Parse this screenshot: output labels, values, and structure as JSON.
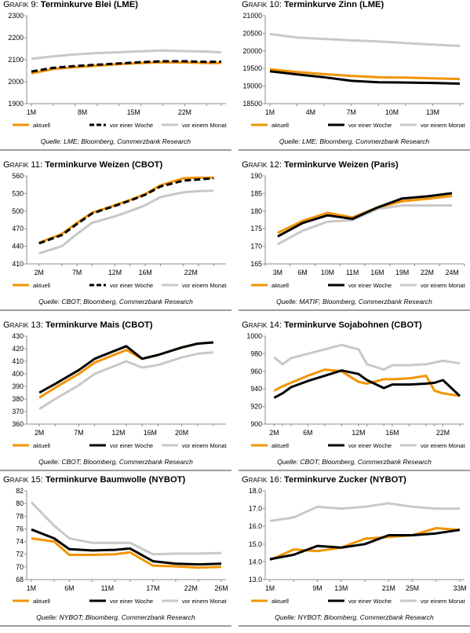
{
  "colors": {
    "aktuell": "#f29400",
    "woche": "#000000",
    "monat": "#c8c8c8",
    "axis": "#8c8c8c"
  },
  "panels": [
    {
      "prefix": "Grafik 9:",
      "title": "Terminkurve Blei (LME)",
      "source": "Quelle: LME; Bloomberg, Commerzbank Research",
      "chart_data": {
        "type": "line",
        "ylim": [
          1900,
          2300
        ],
        "yticks": [
          1900,
          2000,
          2100,
          2200,
          2300
        ],
        "x": [
          1,
          4,
          7,
          10,
          13,
          16,
          19,
          22,
          25,
          27
        ],
        "xticks": [
          1,
          8,
          15,
          22
        ],
        "xticklabels": [
          "1M",
          "8M",
          "15M",
          "22M"
        ],
        "xlim": [
          1,
          27
        ],
        "legend_position": "bottom",
        "series": [
          {
            "name": "aktuell",
            "style": "solid",
            "color_key": "aktuell",
            "values": [
              2038,
              2058,
              2066,
              2073,
              2080,
              2085,
              2088,
              2087,
              2085,
              2085
            ]
          },
          {
            "name": "vor einer Woche",
            "style": "dashed",
            "color_key": "woche",
            "values": [
              2046,
              2063,
              2071,
              2077,
              2083,
              2089,
              2093,
              2093,
              2090,
              2091
            ]
          },
          {
            "name": "vor einem Monat",
            "style": "solid",
            "color_key": "monat",
            "values": [
              2104,
              2115,
              2124,
              2130,
              2134,
              2138,
              2142,
              2139,
              2137,
              2133
            ]
          }
        ]
      }
    },
    {
      "prefix": "Grafik 10:",
      "title": "Terminkurve Zinn (LME)",
      "source": "Quelle: LME; Bloomberg, Commerzbank Research",
      "chart_data": {
        "type": "line",
        "ylim": [
          18500,
          21000
        ],
        "yticks": [
          18500,
          19000,
          19500,
          20000,
          20500,
          21000
        ],
        "x": [
          1,
          3,
          5,
          7,
          9,
          11,
          13,
          15
        ],
        "xticks": [
          1,
          4,
          7,
          10,
          13
        ],
        "xticklabels": [
          "1M",
          "4M",
          "7M",
          "10M",
          "13M"
        ],
        "xlim": [
          1,
          15
        ],
        "legend_position": "bottom",
        "series": [
          {
            "name": "aktuell",
            "style": "solid",
            "color_key": "aktuell",
            "values": [
              19480,
              19400,
              19340,
              19290,
              19250,
              19240,
              19220,
              19200
            ]
          },
          {
            "name": "vor einer Woche",
            "style": "solid",
            "color_key": "woche",
            "values": [
              19420,
              19330,
              19250,
              19150,
              19110,
              19100,
              19090,
              19070
            ]
          },
          {
            "name": "vor einem Monat",
            "style": "solid",
            "color_key": "monat",
            "values": [
              20480,
              20380,
              20340,
              20300,
              20270,
              20220,
              20180,
              20140
            ]
          }
        ]
      }
    },
    {
      "prefix": "Grafik 11:",
      "title": "Terminkurve Weizen (CBOT)",
      "source": "Quelle: CBOT; Bloomberg, Commerzbank Research",
      "chart_data": {
        "type": "line",
        "ylim": [
          410,
          560
        ],
        "yticks": [
          410,
          440,
          470,
          500,
          530,
          560
        ],
        "x": [
          2,
          5,
          7,
          9,
          12,
          14,
          16,
          18,
          21,
          23,
          25
        ],
        "xticks": [
          2,
          7,
          12,
          16,
          22
        ],
        "xticklabels": [
          "2M",
          "7M",
          "12M",
          "16M",
          "22M"
        ],
        "xlim": [
          1,
          26
        ],
        "legend_position": "bottom",
        "series": [
          {
            "name": "aktuell",
            "style": "solid",
            "color_key": "aktuell",
            "values": [
              446,
              461,
              480,
              497,
              510,
              519,
              529,
              544,
              556,
              557,
              557
            ]
          },
          {
            "name": "vor einer Woche",
            "style": "dashed",
            "color_key": "woche",
            "values": [
              445,
              459,
              478,
              496,
              509,
              518,
              528,
              542,
              552,
              554,
              556
            ]
          },
          {
            "name": "vor einem Monat",
            "style": "solid",
            "color_key": "monat",
            "values": [
              428,
              440,
              461,
              480,
              491,
              500,
              510,
              524,
              532,
              534,
              535
            ]
          }
        ]
      }
    },
    {
      "prefix": "Grafik 12:",
      "title": "Terminkurve Weizen (Paris)",
      "source": "Quelle: MATIF; Bloomberg, Commerzbank Research",
      "chart_data": {
        "type": "line",
        "ylim": [
          165,
          190
        ],
        "yticks": [
          165,
          170,
          175,
          180,
          185,
          190
        ],
        "x": [
          3,
          6,
          10,
          11,
          16,
          19,
          22,
          24
        ],
        "xticks": [
          3,
          6,
          10,
          11,
          16,
          19,
          22,
          24
        ],
        "xticklabels": [
          "3M",
          "6M",
          "10M",
          "11M",
          "16M",
          "19M",
          "22M",
          "24M"
        ],
        "categorical_x": true,
        "legend_position": "bottom",
        "series": [
          {
            "name": "aktuell",
            "style": "solid",
            "color_key": "aktuell",
            "values": [
              173.8,
              177.2,
              179.5,
              178.2,
              181.0,
              182.8,
              183.5,
              184.3
            ]
          },
          {
            "name": "vor einer Woche",
            "style": "solid",
            "color_key": "woche",
            "values": [
              172.8,
              176.6,
              178.8,
              177.8,
              181.0,
              183.6,
              184.2,
              185.1
            ]
          },
          {
            "name": "vor einem Monat",
            "style": "solid",
            "color_key": "monat",
            "values": [
              170.6,
              174.4,
              177.0,
              177.4,
              180.6,
              181.6,
              181.6,
              181.6
            ]
          }
        ]
      }
    },
    {
      "prefix": "Grafik 13:",
      "title": "Terminkurve Mais (CBOT)",
      "source": "Quelle: CBOT; Bloomberg, Commerzbank Research",
      "chart_data": {
        "type": "line",
        "ylim": [
          360,
          430
        ],
        "yticks": [
          360,
          370,
          380,
          390,
          400,
          410,
          420,
          430
        ],
        "x": [
          2,
          4,
          7,
          9,
          13,
          15,
          17,
          20,
          22,
          24
        ],
        "xticks": [
          2,
          7,
          12,
          16,
          20
        ],
        "xticklabels": [
          "2M",
          "7M",
          "12M",
          "16M",
          "20M"
        ],
        "xlim": [
          1,
          25
        ],
        "legend_position": "bottom",
        "series": [
          {
            "name": "aktuell",
            "style": "solid",
            "color_key": "aktuell",
            "values": [
              381,
              389,
              400,
              409,
              419,
              412,
              415,
              421,
              424,
              425
            ]
          },
          {
            "name": "vor einer Woche",
            "style": "solid",
            "color_key": "woche",
            "values": [
              385,
              392,
              403,
              412,
              422,
              412,
              415,
              421,
              424,
              425
            ]
          },
          {
            "name": "vor einem Monat",
            "style": "solid",
            "color_key": "monat",
            "values": [
              372,
              380,
              391,
              400,
              410,
              405,
              407,
              413,
              416,
              417
            ]
          }
        ]
      }
    },
    {
      "prefix": "Grafik 14:",
      "title": "Terminkurve Sojabohnen (CBOT)",
      "source": "Quelle: CBOT; Bloomberg, Commerzbank Research",
      "chart_data": {
        "type": "line",
        "ylim": [
          900,
          1000
        ],
        "yticks": [
          900,
          920,
          940,
          960,
          980,
          1000
        ],
        "x": [
          2,
          3,
          4,
          6,
          8,
          10,
          12,
          13,
          15,
          16,
          18,
          20,
          21,
          22,
          24
        ],
        "xticks": [
          2,
          6,
          12,
          16,
          22
        ],
        "xticklabels": [
          "2M",
          "6M",
          "12M",
          "16M",
          "22M"
        ],
        "xlim": [
          1.5,
          24
        ],
        "legend_position": "bottom",
        "series": [
          {
            "name": "aktuell",
            "style": "solid",
            "color_key": "aktuell",
            "values": [
              938,
              943,
              947,
              955,
              962,
              960,
              948,
              946,
              951,
              951,
              952,
              955,
              938,
              935,
              932
            ]
          },
          {
            "name": "vor einer Woche",
            "style": "solid",
            "color_key": "woche",
            "values": [
              930,
              935,
              942,
              949,
              955,
              961,
              957,
              950,
              941,
              945,
              945,
              946,
              947,
              950,
              932
            ]
          },
          {
            "name": "vor einem Monat",
            "style": "solid",
            "color_key": "monat",
            "values": [
              976,
              968,
              975,
              980,
              985,
              990,
              985,
              968,
              962,
              967,
              967,
              968,
              970,
              972,
              969
            ]
          }
        ]
      }
    },
    {
      "prefix": "Grafik 15:",
      "title": "Terminkurve Baumwolle (NYBOT)",
      "source": "Quelle: NYBOT; Bloomberg, Commerzbank Research",
      "chart_data": {
        "type": "line",
        "ylim": [
          68,
          82
        ],
        "yticks": [
          68,
          70,
          72,
          74,
          76,
          78,
          80,
          82
        ],
        "x": [
          1,
          4,
          6,
          9,
          12,
          14,
          17,
          20,
          23,
          26
        ],
        "xticks": [
          1,
          6,
          11,
          17,
          22,
          26
        ],
        "xticklabels": [
          "1M",
          "6M",
          "11M",
          "17M",
          "22M",
          "26M"
        ],
        "xlim": [
          1,
          26
        ],
        "legend_position": "bottom",
        "series": [
          {
            "name": "aktuell",
            "style": "solid",
            "color_key": "aktuell",
            "values": [
              74.5,
              74.0,
              71.9,
              71.9,
              72.0,
              72.3,
              70.2,
              70.1,
              69.9,
              70.0
            ]
          },
          {
            "name": "vor einer Woche",
            "style": "solid",
            "color_key": "woche",
            "values": [
              75.9,
              74.5,
              72.8,
              72.6,
              72.7,
              72.9,
              70.9,
              70.5,
              70.4,
              70.5
            ]
          },
          {
            "name": "vor einem Monat",
            "style": "solid",
            "color_key": "monat",
            "values": [
              80.2,
              76.5,
              74.5,
              73.8,
              73.8,
              73.8,
              72.0,
              72.1,
              72.1,
              72.2
            ]
          }
        ]
      }
    },
    {
      "prefix": "Grafik 16:",
      "title": "Terminkurve Zucker (NYBOT)",
      "source": "Quelle: NYBOT; Bloomberg, Commerzbank Research",
      "chart_data": {
        "type": "line",
        "ylim": [
          13.0,
          18.0
        ],
        "yticks": [
          13.0,
          14.0,
          15.0,
          16.0,
          17.0,
          18.0
        ],
        "ytick_decimals": 1,
        "x": [
          1,
          5,
          9,
          13,
          17,
          21,
          25,
          29,
          33
        ],
        "xticks": [
          1,
          9,
          13,
          21,
          25,
          33
        ],
        "xticklabels": [
          "1M",
          "9M",
          "13M",
          "21M",
          "25M",
          "33M"
        ],
        "xlim": [
          1,
          33
        ],
        "legend_position": "bottom",
        "series": [
          {
            "name": "aktuell",
            "style": "solid",
            "color_key": "aktuell",
            "values": [
              14.1,
              14.7,
              14.6,
              14.8,
              15.3,
              15.4,
              15.5,
              15.9,
              15.8
            ]
          },
          {
            "name": "vor einer Woche",
            "style": "solid",
            "color_key": "woche",
            "values": [
              14.15,
              14.4,
              14.9,
              14.8,
              15.0,
              15.5,
              15.5,
              15.6,
              15.8
            ]
          },
          {
            "name": "vor einem Monat",
            "style": "solid",
            "color_key": "monat",
            "values": [
              16.3,
              16.5,
              17.1,
              17.0,
              17.1,
              17.3,
              17.1,
              17.0,
              17.0
            ]
          }
        ]
      }
    }
  ]
}
